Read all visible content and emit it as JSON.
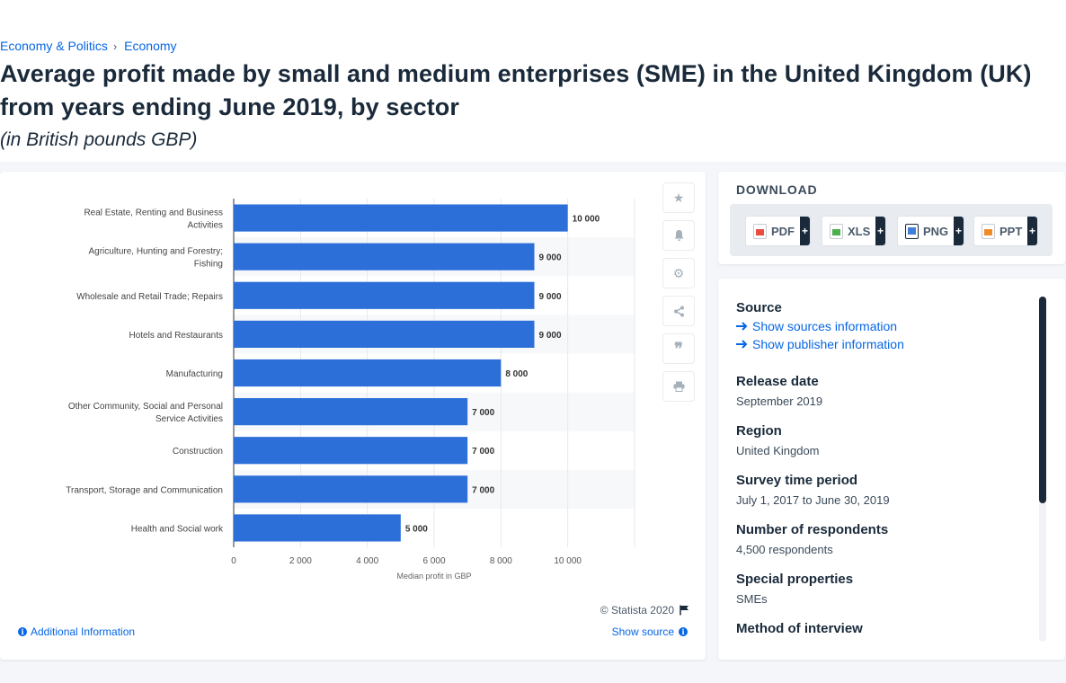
{
  "breadcrumb": {
    "items": [
      "Economy & Politics",
      "Economy"
    ]
  },
  "page": {
    "title": "Average profit made by small and medium enterprises (SME) in the United Kingdom (UK) from years ending June 2019, by sector",
    "subtitle": "(in British pounds GBP)"
  },
  "chart_data": {
    "type": "bar",
    "orientation": "horizontal",
    "categories": [
      "Real Estate, Renting and Business Activities",
      "Agriculture, Hunting and Forestry; Fishing",
      "Wholesale and Retail Trade; Repairs",
      "Hotels and Restaurants",
      "Manufacturing",
      "Other Community, Social and Personal Service Activities",
      "Construction",
      "Transport, Storage and Communication",
      "Health and Social work"
    ],
    "values": [
      10000,
      9000,
      9000,
      9000,
      8000,
      7000,
      7000,
      7000,
      5000
    ],
    "data_labels": [
      "10 000",
      "9 000",
      "9 000",
      "9 000",
      "8 000",
      "7 000",
      "7 000",
      "7 000",
      "5 000"
    ],
    "xlabel": "Median profit in GBP",
    "xlim": [
      0,
      12000
    ],
    "x_ticks": [
      0,
      2000,
      4000,
      6000,
      8000,
      10000
    ],
    "x_tick_labels": [
      "0",
      "2 000",
      "4 000",
      "6 000",
      "8 000",
      "10 000"
    ],
    "bar_color": "#2d6fd8",
    "grid": true
  },
  "chart_footer": {
    "copyright": "© Statista 2020",
    "show_source": "Show source",
    "additional_info": "Additional Information"
  },
  "tools": [
    "star-icon",
    "bell-icon",
    "gear-icon",
    "share-icon",
    "quote-icon",
    "print-icon"
  ],
  "download": {
    "title": "DOWNLOAD",
    "buttons": [
      {
        "label": "PDF",
        "color": "#e74c3c"
      },
      {
        "label": "XLS",
        "color": "#4caf50"
      },
      {
        "label": "PNG",
        "color": "#3f7fd8"
      },
      {
        "label": "PPT",
        "color": "#f08c28"
      }
    ],
    "plus": "+"
  },
  "source": {
    "source_label": "Source",
    "show_sources": "Show sources information",
    "show_publisher": "Show publisher information",
    "release_label": "Release date",
    "release_value": "September 2019",
    "region_label": "Region",
    "region_value": "United Kingdom",
    "survey_label": "Survey time period",
    "survey_value": "July 1, 2017 to June 30, 2019",
    "respondents_label": "Number of respondents",
    "respondents_value": "4,500 respondents",
    "special_label": "Special properties",
    "special_value": "SMEs",
    "method_label": "Method of interview"
  }
}
